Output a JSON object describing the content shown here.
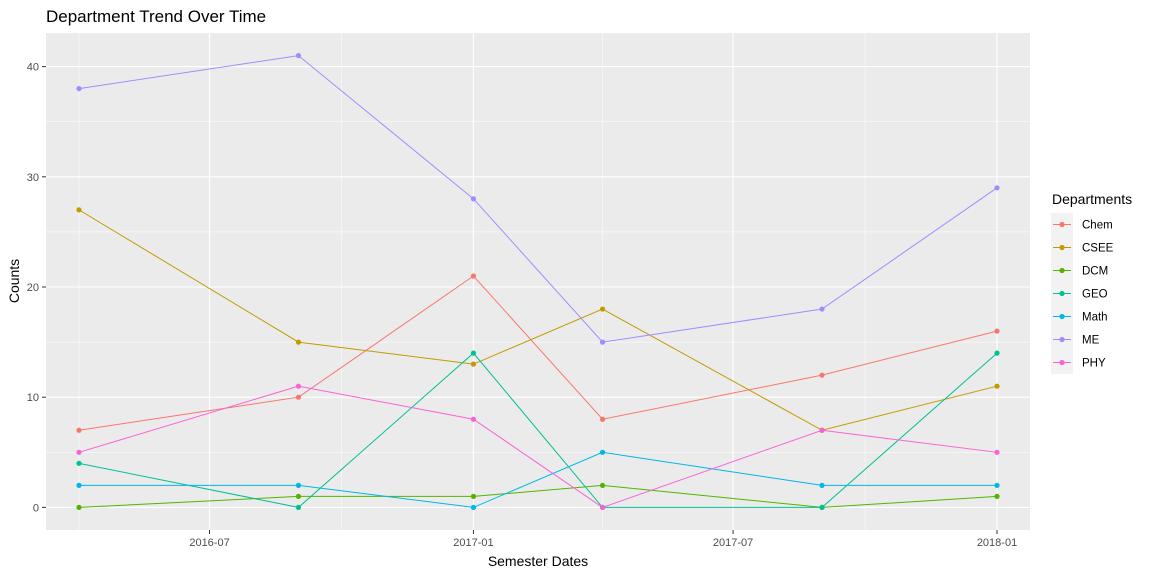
{
  "chart_data": {
    "type": "line",
    "title": "Department Trend Over Time",
    "xlabel": "Semester Dates",
    "ylabel": "Counts",
    "x": [
      "2016-04-01",
      "2016-09-01",
      "2017-01-01",
      "2017-04-01",
      "2017-09-01",
      "2018-01-01"
    ],
    "x_ticks": [
      "2016-07",
      "2017-01",
      "2017-07",
      "2018-01"
    ],
    "y_ticks": [
      0,
      10,
      20,
      30,
      40
    ],
    "xlim": [
      "2016-03-09",
      "2018-01-24"
    ],
    "ylim": [
      -2.05,
      43.05
    ],
    "grid": true,
    "legend": {
      "title": "Departments",
      "position": "right"
    },
    "series": [
      {
        "name": "Chem",
        "color": "#F8766D",
        "values": [
          7,
          10,
          21,
          8,
          12,
          16
        ]
      },
      {
        "name": "CSEE",
        "color": "#C49A00",
        "values": [
          27,
          15,
          13,
          18,
          7,
          11
        ]
      },
      {
        "name": "DCM",
        "color": "#53B400",
        "values": [
          0,
          1,
          1,
          2,
          0,
          1
        ]
      },
      {
        "name": "GEO",
        "color": "#00C094",
        "values": [
          4,
          0,
          14,
          0,
          0,
          14
        ]
      },
      {
        "name": "Math",
        "color": "#00B6EB",
        "values": [
          2,
          2,
          0,
          5,
          2,
          2
        ]
      },
      {
        "name": "ME",
        "color": "#A58AFF",
        "values": [
          38,
          41,
          28,
          15,
          18,
          29
        ]
      },
      {
        "name": "PHY",
        "color": "#FB61D7",
        "values": [
          5,
          11,
          8,
          0,
          7,
          5
        ]
      }
    ]
  }
}
